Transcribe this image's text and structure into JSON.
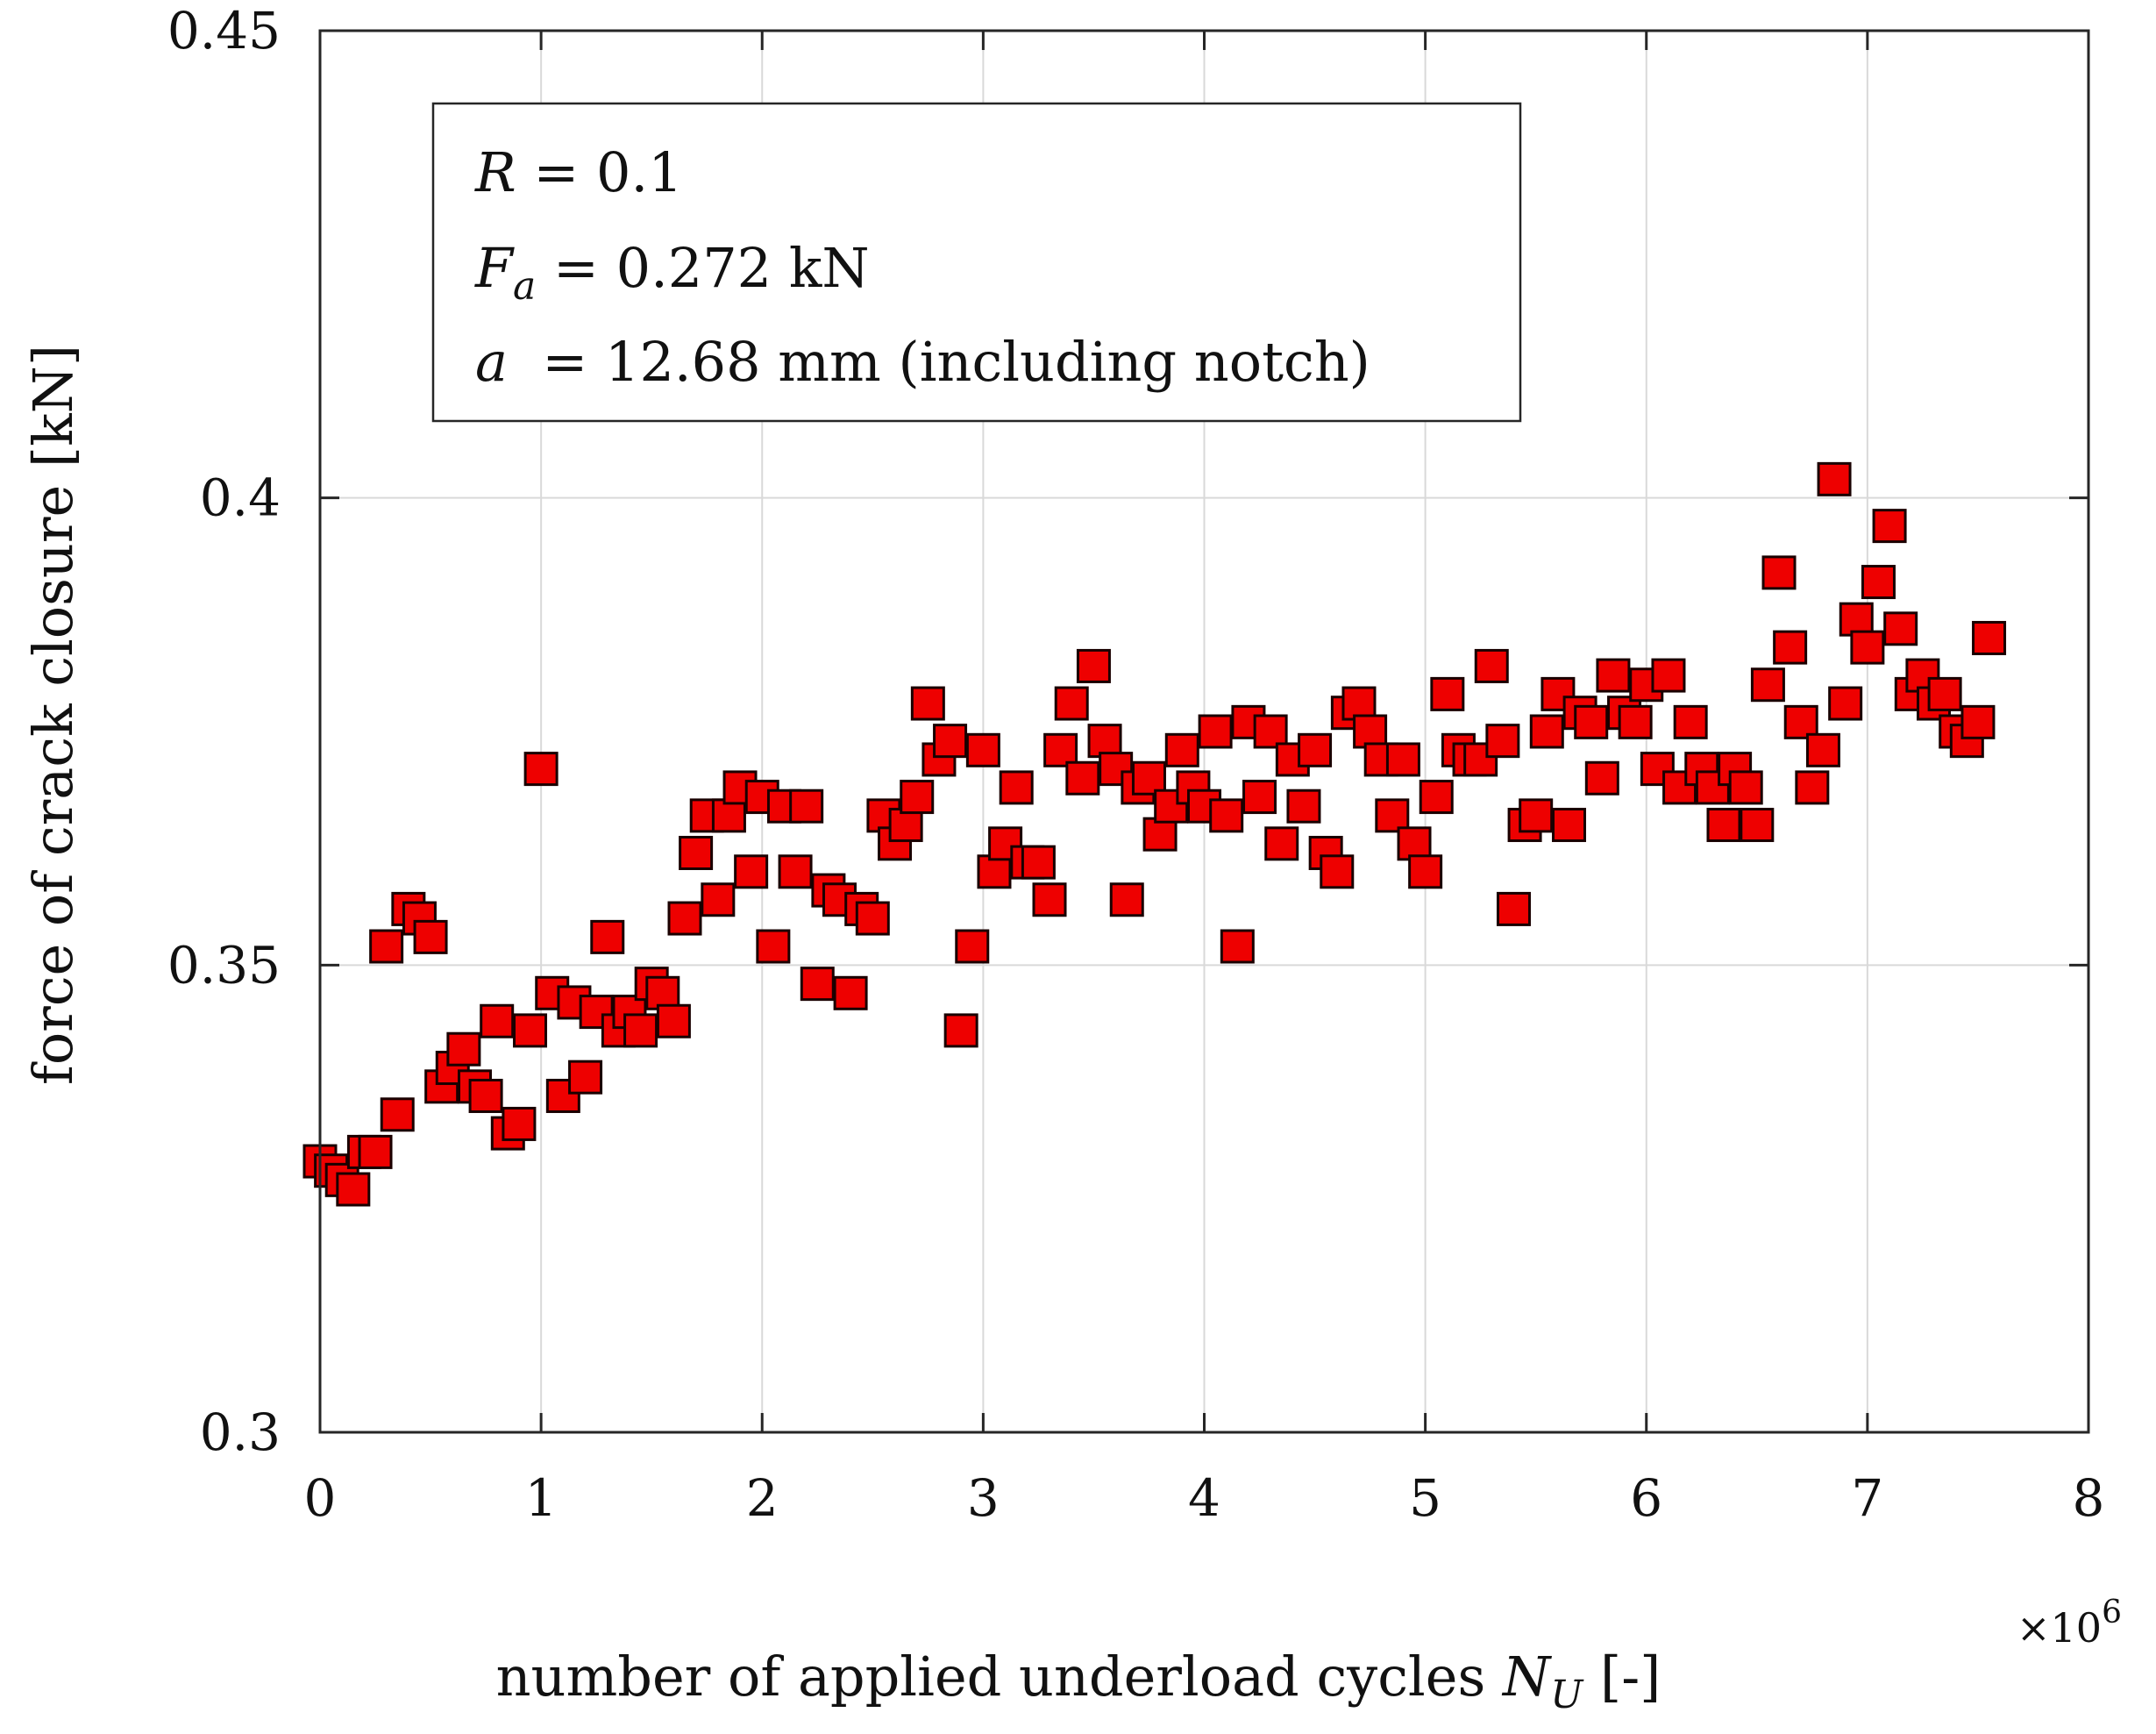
{
  "chart_data": {
    "type": "scatter",
    "xlabel_main": "number of applied underload cycles ",
    "xlabel_symbol": "N",
    "xlabel_subscript": "U",
    "xlabel_unit": " [-]",
    "x_exponent_label": "×10",
    "x_exponent_power": "6",
    "ylabel": "force of crack closure [kN]",
    "xlim": [
      0,
      8
    ],
    "ylim": [
      0.3,
      0.45
    ],
    "x_ticks": [
      0,
      1,
      2,
      3,
      4,
      5,
      6,
      7,
      8
    ],
    "x_tick_labels": [
      "0",
      "1",
      "2",
      "3",
      "4",
      "5",
      "6",
      "7",
      "8"
    ],
    "y_ticks": [
      0.3,
      0.35,
      0.4,
      0.45
    ],
    "y_tick_labels": [
      "0.3",
      "0.35",
      "0.4",
      "0.45"
    ],
    "grid": true,
    "marker": "square",
    "marker_color": "#ee0000",
    "marker_edge_color": "#1a0000",
    "annotation": {
      "line1_symbol": "R",
      "line1_text": " = 0.1",
      "line2_symbol": "F",
      "line2_subscript": "a",
      "line2_text": " = 0.272 kN",
      "line3_symbol": "a",
      "line3_text": "  = 12.68 mm (including notch)"
    },
    "series": [
      {
        "name": "crack closure force",
        "points": [
          [
            0.0,
            0.329
          ],
          [
            0.05,
            0.328
          ],
          [
            0.1,
            0.327
          ],
          [
            0.15,
            0.326
          ],
          [
            0.2,
            0.33
          ],
          [
            0.25,
            0.33
          ],
          [
            0.3,
            0.352
          ],
          [
            0.35,
            0.334
          ],
          [
            0.4,
            0.356
          ],
          [
            0.45,
            0.355
          ],
          [
            0.5,
            0.353
          ],
          [
            0.55,
            0.337
          ],
          [
            0.6,
            0.339
          ],
          [
            0.65,
            0.341
          ],
          [
            0.7,
            0.337
          ],
          [
            0.75,
            0.336
          ],
          [
            0.8,
            0.344
          ],
          [
            0.85,
            0.332
          ],
          [
            0.9,
            0.333
          ],
          [
            0.95,
            0.343
          ],
          [
            1.0,
            0.371
          ],
          [
            1.05,
            0.347
          ],
          [
            1.1,
            0.336
          ],
          [
            1.15,
            0.346
          ],
          [
            1.2,
            0.338
          ],
          [
            1.25,
            0.345
          ],
          [
            1.3,
            0.353
          ],
          [
            1.35,
            0.343
          ],
          [
            1.4,
            0.345
          ],
          [
            1.45,
            0.343
          ],
          [
            1.5,
            0.348
          ],
          [
            1.55,
            0.347
          ],
          [
            1.6,
            0.344
          ],
          [
            1.65,
            0.355
          ],
          [
            1.7,
            0.362
          ],
          [
            1.75,
            0.366
          ],
          [
            1.8,
            0.357
          ],
          [
            1.85,
            0.366
          ],
          [
            1.9,
            0.369
          ],
          [
            1.95,
            0.36
          ],
          [
            2.0,
            0.368
          ],
          [
            2.05,
            0.352
          ],
          [
            2.1,
            0.367
          ],
          [
            2.15,
            0.36
          ],
          [
            2.2,
            0.367
          ],
          [
            2.25,
            0.348
          ],
          [
            2.3,
            0.358
          ],
          [
            2.35,
            0.357
          ],
          [
            2.4,
            0.347
          ],
          [
            2.45,
            0.356
          ],
          [
            2.5,
            0.355
          ],
          [
            2.55,
            0.366
          ],
          [
            2.6,
            0.363
          ],
          [
            2.65,
            0.365
          ],
          [
            2.7,
            0.368
          ],
          [
            2.75,
            0.378
          ],
          [
            2.8,
            0.372
          ],
          [
            2.85,
            0.374
          ],
          [
            2.9,
            0.343
          ],
          [
            2.95,
            0.352
          ],
          [
            3.0,
            0.373
          ],
          [
            3.05,
            0.36
          ],
          [
            3.1,
            0.363
          ],
          [
            3.15,
            0.369
          ],
          [
            3.2,
            0.361
          ],
          [
            3.25,
            0.361
          ],
          [
            3.3,
            0.357
          ],
          [
            3.35,
            0.373
          ],
          [
            3.4,
            0.378
          ],
          [
            3.45,
            0.37
          ],
          [
            3.5,
            0.382
          ],
          [
            3.55,
            0.374
          ],
          [
            3.6,
            0.371
          ],
          [
            3.65,
            0.357
          ],
          [
            3.7,
            0.369
          ],
          [
            3.75,
            0.37
          ],
          [
            3.8,
            0.364
          ],
          [
            3.85,
            0.367
          ],
          [
            3.9,
            0.373
          ],
          [
            3.95,
            0.369
          ],
          [
            4.0,
            0.367
          ],
          [
            4.05,
            0.375
          ],
          [
            4.1,
            0.366
          ],
          [
            4.15,
            0.352
          ],
          [
            4.2,
            0.376
          ],
          [
            4.25,
            0.368
          ],
          [
            4.3,
            0.375
          ],
          [
            4.35,
            0.363
          ],
          [
            4.4,
            0.372
          ],
          [
            4.45,
            0.367
          ],
          [
            4.5,
            0.373
          ],
          [
            4.55,
            0.362
          ],
          [
            4.6,
            0.36
          ],
          [
            4.65,
            0.377
          ],
          [
            4.7,
            0.378
          ],
          [
            4.75,
            0.375
          ],
          [
            4.8,
            0.372
          ],
          [
            4.85,
            0.366
          ],
          [
            4.9,
            0.372
          ],
          [
            4.95,
            0.363
          ],
          [
            5.0,
            0.36
          ],
          [
            5.05,
            0.368
          ],
          [
            5.1,
            0.379
          ],
          [
            5.15,
            0.373
          ],
          [
            5.2,
            0.372
          ],
          [
            5.25,
            0.372
          ],
          [
            5.3,
            0.382
          ],
          [
            5.35,
            0.374
          ],
          [
            5.4,
            0.356
          ],
          [
            5.45,
            0.365
          ],
          [
            5.5,
            0.366
          ],
          [
            5.55,
            0.375
          ],
          [
            5.6,
            0.379
          ],
          [
            5.65,
            0.365
          ],
          [
            5.7,
            0.377
          ],
          [
            5.75,
            0.376
          ],
          [
            5.8,
            0.37
          ],
          [
            5.85,
            0.381
          ],
          [
            5.9,
            0.377
          ],
          [
            5.95,
            0.376
          ],
          [
            6.0,
            0.38
          ],
          [
            6.05,
            0.371
          ],
          [
            6.1,
            0.381
          ],
          [
            6.15,
            0.369
          ],
          [
            6.2,
            0.376
          ],
          [
            6.25,
            0.371
          ],
          [
            6.3,
            0.369
          ],
          [
            6.35,
            0.365
          ],
          [
            6.4,
            0.371
          ],
          [
            6.45,
            0.369
          ],
          [
            6.5,
            0.365
          ],
          [
            6.55,
            0.38
          ],
          [
            6.6,
            0.392
          ],
          [
            6.65,
            0.384
          ],
          [
            6.7,
            0.376
          ],
          [
            6.75,
            0.369
          ],
          [
            6.8,
            0.373
          ],
          [
            6.85,
            0.402
          ],
          [
            6.9,
            0.378
          ],
          [
            6.95,
            0.387
          ],
          [
            7.0,
            0.384
          ],
          [
            7.05,
            0.391
          ],
          [
            7.1,
            0.397
          ],
          [
            7.15,
            0.386
          ],
          [
            7.2,
            0.379
          ],
          [
            7.25,
            0.381
          ],
          [
            7.3,
            0.378
          ],
          [
            7.35,
            0.379
          ],
          [
            7.4,
            0.375
          ],
          [
            7.45,
            0.374
          ],
          [
            7.5,
            0.376
          ],
          [
            7.55,
            0.385
          ]
        ]
      }
    ]
  }
}
